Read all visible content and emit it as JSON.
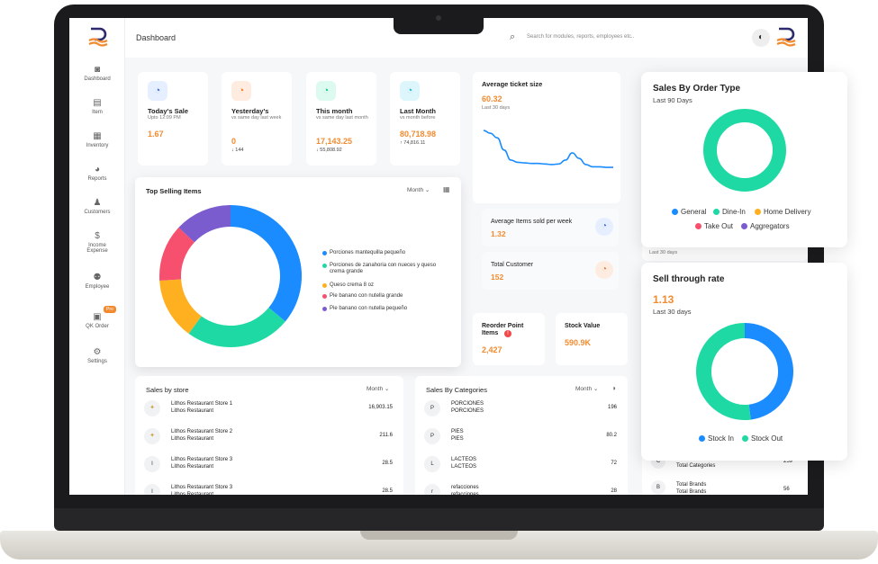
{
  "sidebar": {
    "items": [
      {
        "label": "Dashboard",
        "icon": "camera-icon"
      },
      {
        "label": "Item",
        "icon": "box-icon"
      },
      {
        "label": "Inventory",
        "icon": "layers-icon"
      },
      {
        "label": "Reports",
        "icon": "pie-icon"
      },
      {
        "label": "Customers",
        "icon": "users-icon"
      },
      {
        "label": "Income",
        "label2": "Expense",
        "icon": "dollar-icon"
      },
      {
        "label": "Employee",
        "icon": "people-icon"
      },
      {
        "label": "QK Order",
        "icon": "briefcase-icon",
        "badge": "Pro"
      },
      {
        "label": "Settings",
        "icon": "gear-icon"
      }
    ]
  },
  "header": {
    "title": "Dashboard",
    "search_placeholder": "Search for modules, reports, employees etc.."
  },
  "kpis": [
    {
      "title": "Today's Sale",
      "sub": "Upto 12:09 PM",
      "value": "1.67",
      "delta": ""
    },
    {
      "title": "Yesterday's",
      "sub": "vs same day last week",
      "value": "0",
      "delta": "↓ 144"
    },
    {
      "title": "This month",
      "sub": "vs same day last month",
      "value": "17,143.25",
      "delta": "↓ 55,808.92"
    },
    {
      "title": "Last Month",
      "sub": "vs month before",
      "value": "80,718.98",
      "delta": "↑ 74,816.11"
    }
  ],
  "avg_ticket": {
    "title": "Average ticket size",
    "value": "60.32",
    "sub": "Last 30 days"
  },
  "avg_items": {
    "title": "Average Items sold per week",
    "value": "1.32"
  },
  "total_customer": {
    "title": "Total Customer",
    "value": "152"
  },
  "reorder": {
    "title": "Reorder Point Items",
    "value": "2,427"
  },
  "stock_value": {
    "title": "Stock Value",
    "value": "590.9K"
  },
  "top_selling": {
    "title": "Top Selling Items",
    "filter": "Month",
    "items": [
      {
        "label": "Porciones mantequilla pequeño",
        "color": "#1a8cff",
        "value": 36
      },
      {
        "label": "Porciones de zanahoria con nueces y queso crema grande",
        "color": "#1ed9a4",
        "value": 24
      },
      {
        "label": "Queso crema 8 oz",
        "color": "#ffb020",
        "value": 14
      },
      {
        "label": "Pie banano con nutella grande",
        "color": "#f7506e",
        "value": 13
      },
      {
        "label": "Pie banano con nutella pequeño",
        "color": "#7b5ccf",
        "value": 13
      }
    ]
  },
  "sales_by_store": {
    "title": "Sales by store",
    "filter": "Month",
    "rows": [
      {
        "name": "Lithos Restaurant Store 1",
        "sub": "Lithos Restaurant",
        "value": "16,903.15",
        "avatar": "logo"
      },
      {
        "name": "Lithos Restaurant Store 2",
        "sub": "Lithos Restaurant",
        "value": "211.6",
        "avatar": "logo"
      },
      {
        "name": "Lithos Restaurant Store 3",
        "sub": "Lithos Restaurant",
        "value": "28.5",
        "avatar": "I"
      },
      {
        "name": "Lithos Restaurant Store 3",
        "sub": "Lithos Restaurant",
        "value": "28.5",
        "avatar": "I"
      }
    ]
  },
  "sales_by_categories": {
    "title": "Sales By Categories",
    "filter": "Month",
    "rows": [
      {
        "name": "PORCIONES",
        "sub": "PORCIONES",
        "value": "196",
        "avatar": "P"
      },
      {
        "name": "PIES",
        "sub": "PIES",
        "value": "80.2",
        "avatar": "P"
      },
      {
        "name": "LACTEOS",
        "sub": "LACTEOS",
        "value": "72",
        "avatar": "L"
      },
      {
        "name": "refacciones",
        "sub": "refacciones",
        "value": "28",
        "avatar": "r"
      }
    ]
  },
  "right_peek": {
    "last30": "Last 30 days",
    "rows": [
      {
        "avatar": "C",
        "sub": "Total Categories",
        "value": "259"
      },
      {
        "avatar": "B",
        "name": "Total Brands",
        "sub": "Total Brands",
        "value": "56"
      }
    ]
  },
  "order_type": {
    "title": "Sales By Order Type",
    "sub": "Last 90 Days",
    "legend": [
      {
        "label": "General",
        "color": "#1a8cff"
      },
      {
        "label": "Dine-In",
        "color": "#1ed9a4"
      },
      {
        "label": "Home Delivery",
        "color": "#ffb020"
      },
      {
        "label": "Take Out",
        "color": "#f7506e"
      },
      {
        "label": "Aggregators",
        "color": "#7b5ccf"
      }
    ],
    "values": [
      0,
      100,
      0,
      0,
      0
    ]
  },
  "sell_through": {
    "title": "Sell through rate",
    "value": "1.13",
    "sub": "Last 30 days",
    "legend": [
      {
        "label": "Stock In",
        "color": "#1a8cff"
      },
      {
        "label": "Stock Out",
        "color": "#1ed9a4"
      }
    ],
    "values": [
      48,
      52
    ]
  },
  "chart_data": [
    {
      "type": "pie",
      "title": "Top Selling Items",
      "categories": [
        "Porciones mantequilla pequeño",
        "Porciones de zanahoria con nueces y queso crema grande",
        "Queso crema 8 oz",
        "Pie banano con nutella grande",
        "Pie banano con nutella pequeño"
      ],
      "values": [
        36,
        24,
        14,
        13,
        13
      ]
    },
    {
      "type": "line",
      "title": "Average ticket size",
      "x": [
        1,
        2,
        3,
        4,
        5,
        6,
        7,
        8,
        9,
        10,
        11,
        12,
        13,
        14,
        15,
        16,
        17,
        18,
        19,
        20
      ],
      "values": [
        95,
        90,
        82,
        60,
        42,
        38,
        37,
        36,
        36,
        35,
        34,
        35,
        42,
        55,
        45,
        34,
        30,
        30,
        29,
        29
      ]
    },
    {
      "type": "pie",
      "title": "Sales By Order Type",
      "categories": [
        "General",
        "Dine-In",
        "Home Delivery",
        "Take Out",
        "Aggregators"
      ],
      "values": [
        0,
        100,
        0,
        0,
        0
      ]
    },
    {
      "type": "pie",
      "title": "Sell through rate",
      "categories": [
        "Stock In",
        "Stock Out"
      ],
      "values": [
        48,
        52
      ]
    }
  ]
}
